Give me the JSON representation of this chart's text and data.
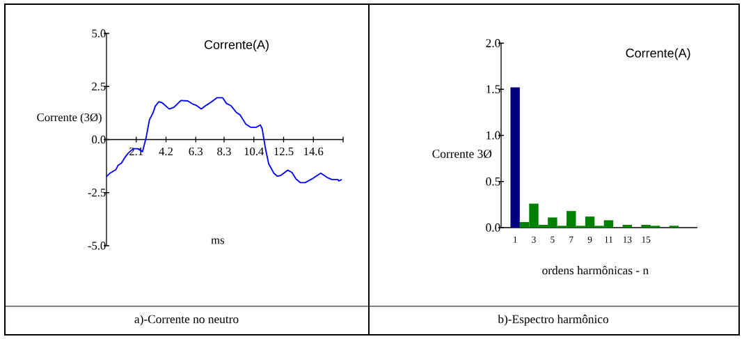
{
  "chart_data": [
    {
      "type": "line",
      "title": "Corrente(A)",
      "xlabel": "ms",
      "ylabel": "Corrente (3Ø)",
      "x": [
        0,
        0.25,
        0.66,
        0.82,
        1.07,
        1.31,
        1.56,
        1.89,
        2.21,
        2.54,
        2.79,
        3.03,
        3.28,
        3.44,
        3.69,
        3.94,
        4.43,
        4.76,
        5.25,
        5.74,
        6.07,
        6.31,
        6.69,
        7.05,
        7.38,
        7.79,
        8.2,
        8.45,
        8.77,
        9.18,
        9.43,
        9.84,
        10.17,
        10.58,
        10.86,
        10.99,
        11.23,
        11.45,
        11.81,
        12.05,
        12.3,
        12.79,
        13.09,
        13.37,
        13.69,
        14.02,
        14.51,
        15.12,
        15.58,
        15.91,
        16.32,
        16.4,
        16.6
      ],
      "series": [
        {
          "color": "#0000ff",
          "values": [
            -1.74,
            -1.58,
            -1.42,
            -1.21,
            -1.1,
            -0.83,
            -0.62,
            -0.43,
            -0.43,
            -0.57,
            0.07,
            0.93,
            1.25,
            1.57,
            1.78,
            1.73,
            1.44,
            1.52,
            1.84,
            1.82,
            1.68,
            1.62,
            1.44,
            1.62,
            1.76,
            1.97,
            1.97,
            1.71,
            1.6,
            1.27,
            1.16,
            0.72,
            0.58,
            0.58,
            0.69,
            0.5,
            -0.46,
            -1.15,
            -1.58,
            -1.72,
            -1.69,
            -1.44,
            -1.55,
            -1.85,
            -2.03,
            -2.03,
            -1.85,
            -1.58,
            -1.79,
            -1.88,
            -1.88,
            -1.95,
            -1.88
          ]
        }
      ],
      "xlim": [
        0,
        16.7
      ],
      "xticks": [
        2.1,
        4.2,
        6.3,
        8.3,
        10.4,
        12.5,
        14.6,
        {
          "value": 16.7,
          "label": null
        }
      ],
      "ylim": [
        -5,
        5
      ],
      "yticks": [
        {
          "value": -5,
          "label": "-5.0"
        },
        -2.5,
        {
          "value": 0,
          "label": "0.0"
        },
        2.5,
        {
          "value": 5,
          "label": "5.0"
        }
      ],
      "annotations": [
        "a)-Corrente no neutro"
      ]
    },
    {
      "type": "bar",
      "title": "Corrente(A)",
      "xlabel": "ordens harmônicas - n",
      "ylabel": "Corrente 3Ø",
      "categories": [
        "1",
        null,
        "3",
        null,
        "5",
        null,
        "7",
        null,
        "9",
        null,
        "11",
        null,
        "13",
        null,
        "15",
        null,
        null,
        null
      ],
      "values": [
        1.52,
        0.06,
        0.26,
        0.03,
        0.11,
        0.02,
        0.18,
        0.02,
        0.12,
        0.02,
        0.08,
        0,
        0.03,
        0,
        0.03,
        0.02,
        0,
        0.02
      ],
      "colors": [
        "#000080",
        "#008000",
        "#008000",
        "#008000",
        "#008000",
        "#008000",
        "#008000",
        "#008000",
        "#008000",
        "#008000",
        "#008000",
        "#008000",
        "#008000",
        "#008000",
        "#008000",
        "#008000",
        "#008000",
        "#008000"
      ],
      "ylim": [
        0,
        2
      ],
      "yticks": [
        {
          "value": 0,
          "label": "0.0"
        },
        0.5,
        {
          "value": 1,
          "label": "1.0"
        },
        1.5,
        {
          "value": 2,
          "label": "2.0"
        }
      ],
      "annotations": [
        "b)-Espectro harmônico"
      ]
    }
  ]
}
